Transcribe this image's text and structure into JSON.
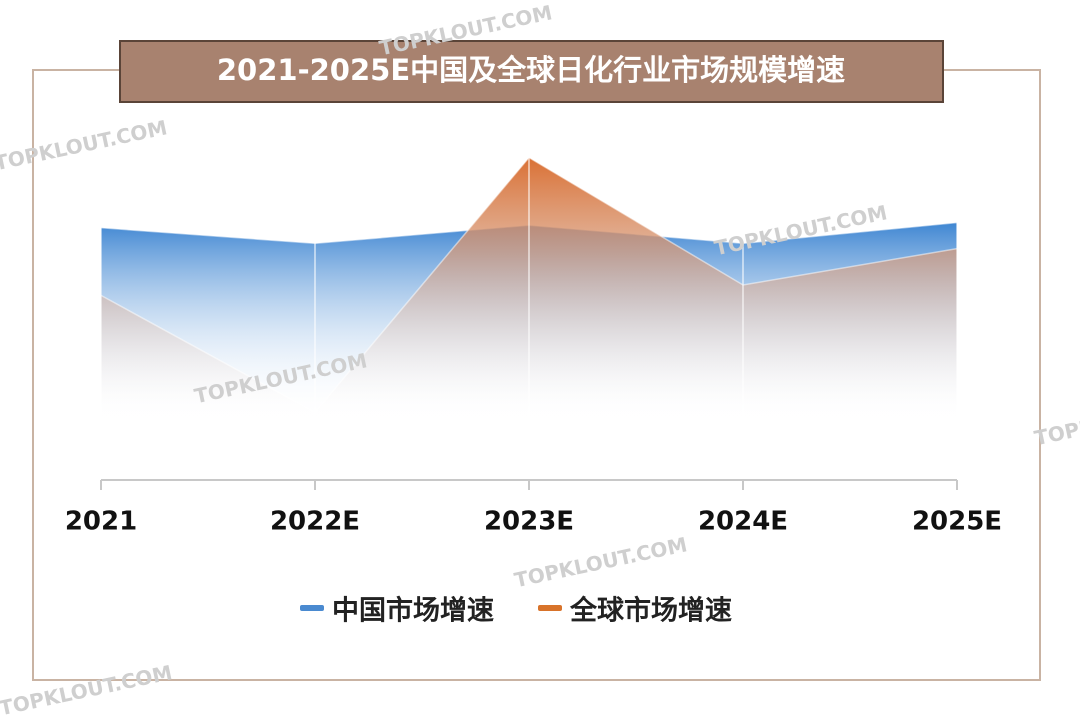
{
  "chart_data": {
    "type": "area",
    "title": "2021-2025E中国及全球日化行业市场规模增速",
    "categories": [
      "2021",
      "2022E",
      "2023E",
      "2024E",
      "2025E"
    ],
    "series": [
      {
        "name": "中国市场增速",
        "color": "#4a8ad0",
        "values": [
          7.2,
          6.6,
          7.3,
          6.6,
          7.4
        ]
      },
      {
        "name": "全球市场增速",
        "color": "#d8732a",
        "values": [
          4.6,
          0.1,
          9.9,
          5.0,
          6.4
        ]
      }
    ],
    "ylim": [
      0,
      10
    ],
    "watermark": "TOPKLOUT.COM"
  }
}
